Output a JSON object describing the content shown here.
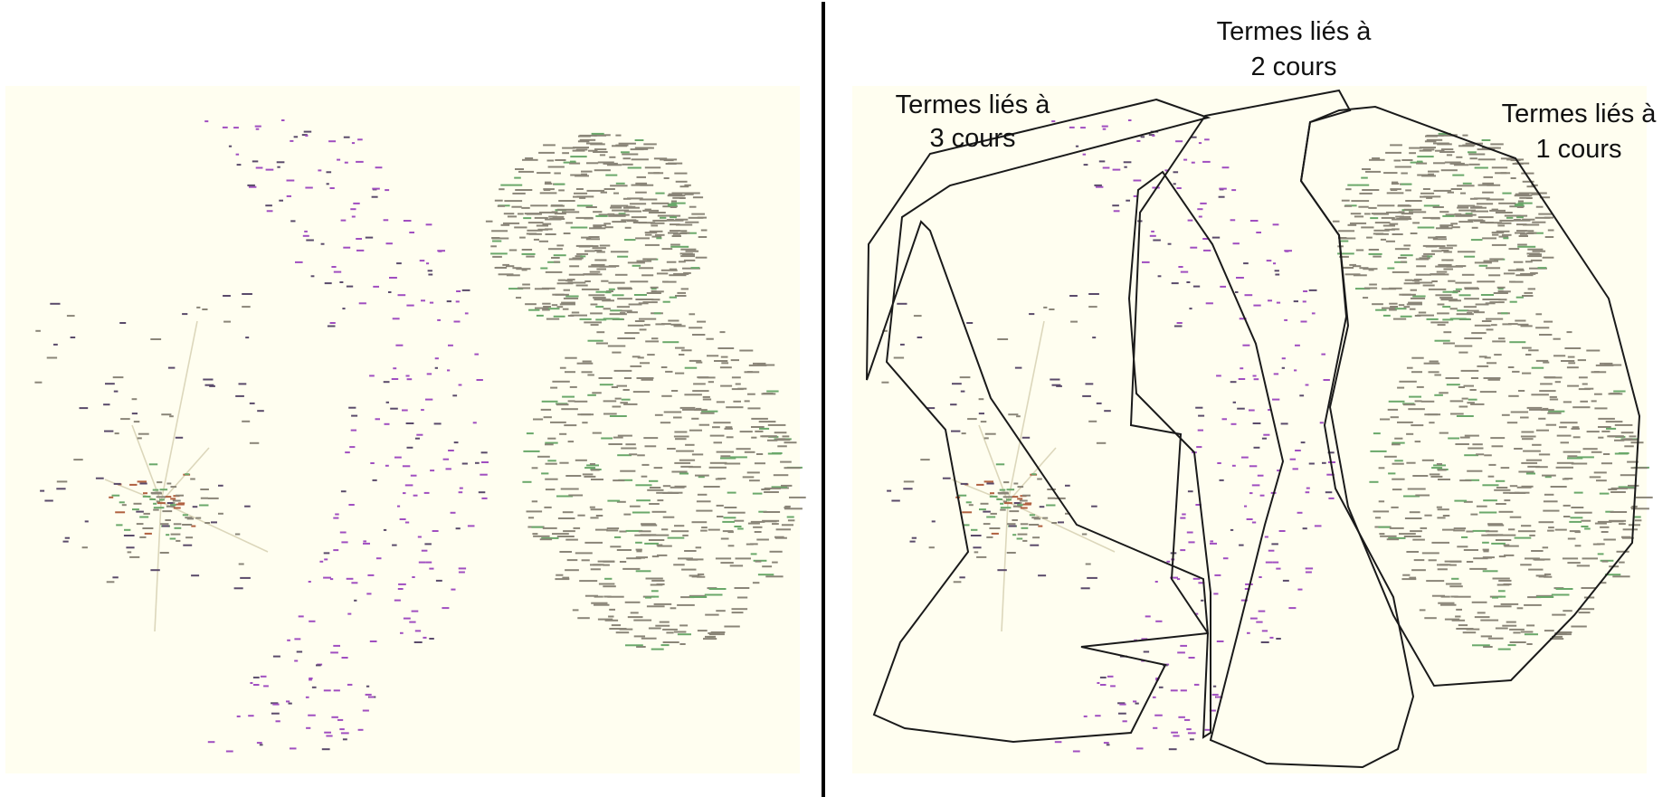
{
  "figure": {
    "panels": [
      {
        "name": "left-panel-network"
      },
      {
        "name": "right-panel-annotated-network"
      }
    ],
    "regions": [
      {
        "id": "three-courses",
        "label_line1": "Termes liés à",
        "label_line2": "3 cours"
      },
      {
        "id": "two-courses",
        "label_line1": "Termes liés à",
        "label_line2": "2 cours"
      },
      {
        "id": "one-course",
        "label_line1": "Termes liés à",
        "label_line2": "1 cours"
      }
    ],
    "colors": {
      "background": "#fffef0",
      "outline": "#1a1a1a",
      "node_purple": "#a04ec0",
      "node_gray": "#8a8578",
      "node_dark": "#5a4a6a",
      "node_green": "#6aa86a",
      "node_hub": "#b06040",
      "hub_edge": "#d9d3b6"
    }
  }
}
